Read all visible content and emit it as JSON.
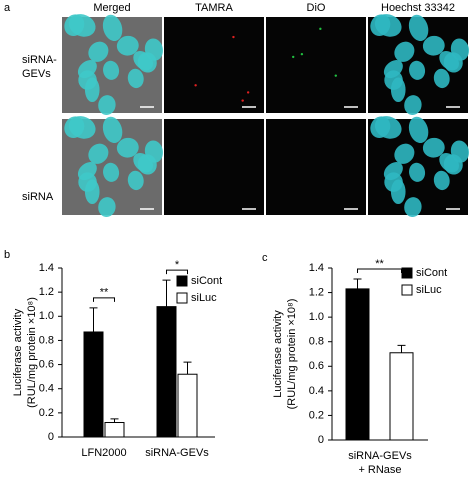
{
  "figure_a": {
    "label": "a",
    "columns": [
      "Merged",
      "TAMRA",
      "DiO",
      "Hoechst 33342"
    ],
    "rows": [
      "siRNA-\nGEVs",
      "siRNA"
    ]
  },
  "chart_data": [
    {
      "type": "bar",
      "label": "b",
      "y_label": [
        "Luciferase activity",
        "(RUL/mg protein ×10⁸)"
      ],
      "categories": [
        "LFN2000",
        "siRNA-GEVs"
      ],
      "series": [
        {
          "name": "siCont",
          "color": "#000000",
          "values": [
            0.87,
            1.08
          ],
          "errors": [
            0.2,
            0.22
          ]
        },
        {
          "name": "siLuc",
          "color": "#ffffff",
          "values": [
            0.12,
            0.52
          ],
          "errors": [
            0.03,
            0.1
          ]
        }
      ],
      "significance": [
        "**",
        "*"
      ],
      "ylim": [
        0,
        1.4
      ],
      "yticks": [
        0,
        0.2,
        0.4,
        0.6,
        0.8,
        {
          "value": 1,
          "label": "1.0"
        },
        1.2,
        1.4
      ]
    },
    {
      "type": "bar",
      "label": "c",
      "y_label": [
        "Luciferase activity",
        "(RUL/mg protein ×10⁸)"
      ],
      "categories": [
        "siRNA-GEVs\n+ RNase"
      ],
      "series": [
        {
          "name": "siCont",
          "color": "#000000",
          "values": [
            1.23
          ],
          "errors": [
            0.08
          ]
        },
        {
          "name": "siLuc",
          "color": "#ffffff",
          "values": [
            0.71
          ],
          "errors": [
            0.06
          ]
        }
      ],
      "significance": [
        "**"
      ],
      "ylim": [
        0,
        1.4
      ],
      "yticks": [
        0,
        0.2,
        0.4,
        0.6,
        0.8,
        {
          "value": 1,
          "label": "1.0"
        },
        1.2,
        1.4
      ]
    }
  ]
}
